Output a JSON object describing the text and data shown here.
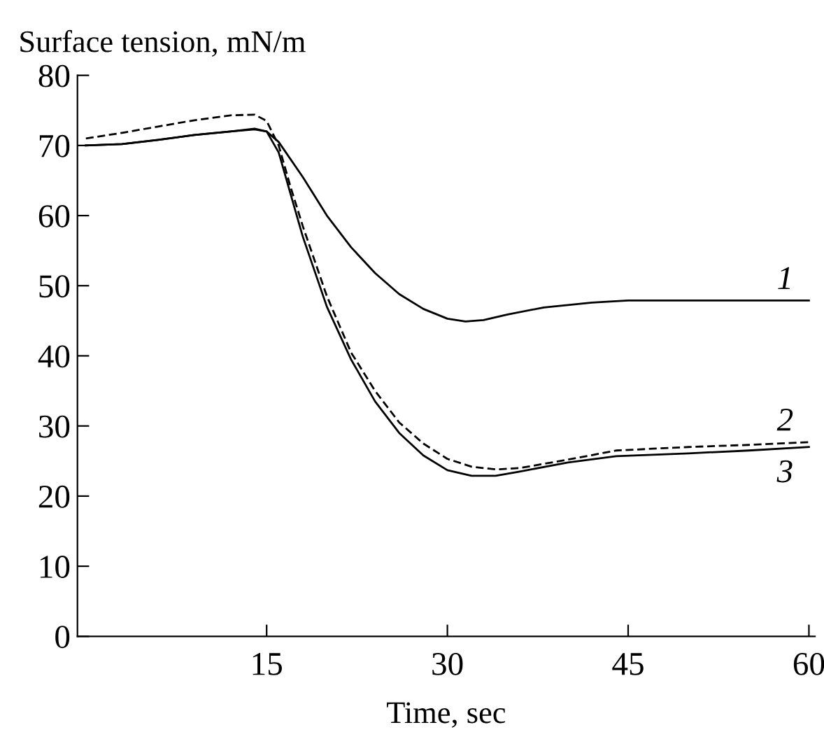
{
  "chart_data": {
    "type": "line",
    "ylabel": "Surface tension, mN/m",
    "xlabel": "Time, sec",
    "xlim": [
      -0.7,
      60.5
    ],
    "ylim": [
      0,
      80
    ],
    "xticks": [
      15,
      30,
      45,
      60
    ],
    "yticks": [
      0,
      10,
      20,
      30,
      40,
      50,
      60,
      70,
      80
    ],
    "grid": false,
    "legend": false,
    "marker": "none",
    "series": [
      {
        "name": "1",
        "color": "#000000",
        "line_style": "solid",
        "x": [
          0,
          3,
          6,
          9,
          12,
          14,
          15,
          16,
          18,
          20,
          22,
          24,
          26,
          28,
          30,
          31.5,
          33,
          35,
          38,
          42,
          45,
          50,
          55,
          60
        ],
        "values": [
          70,
          70.2,
          70.8,
          71.5,
          72,
          72.3,
          72,
          70.5,
          65.5,
          60,
          55.5,
          51.8,
          48.8,
          46.7,
          45.3,
          44.9,
          45.1,
          45.9,
          46.9,
          47.6,
          47.9,
          47.9,
          47.9,
          47.9
        ]
      },
      {
        "name": "2",
        "color": "#000000",
        "line_style": "dashed",
        "x": [
          0,
          3,
          6,
          9,
          12,
          14,
          15,
          16,
          17,
          18,
          20,
          22,
          24,
          26,
          28,
          30,
          32,
          34,
          36,
          40,
          44,
          50,
          55,
          60
        ],
        "values": [
          71,
          71.8,
          72.7,
          73.6,
          74.3,
          74.4,
          73.5,
          70,
          64,
          58.5,
          48.5,
          40.5,
          35,
          30.5,
          27.5,
          25.3,
          24.2,
          23.8,
          24,
          25.2,
          26.5,
          27,
          27.3,
          27.7
        ]
      },
      {
        "name": "3",
        "color": "#000000",
        "line_style": "solid",
        "x": [
          0,
          3,
          6,
          9,
          12,
          14,
          15,
          16,
          17,
          18,
          20,
          22,
          24,
          26,
          28,
          30,
          32,
          34,
          36,
          40,
          44,
          50,
          55,
          60
        ],
        "values": [
          70,
          70.2,
          70.8,
          71.5,
          72,
          72.4,
          72,
          69,
          63,
          57,
          47,
          39.5,
          33.5,
          29,
          25.8,
          23.7,
          22.9,
          22.9,
          23.5,
          24.8,
          25.7,
          26.1,
          26.5,
          27
        ]
      }
    ]
  }
}
